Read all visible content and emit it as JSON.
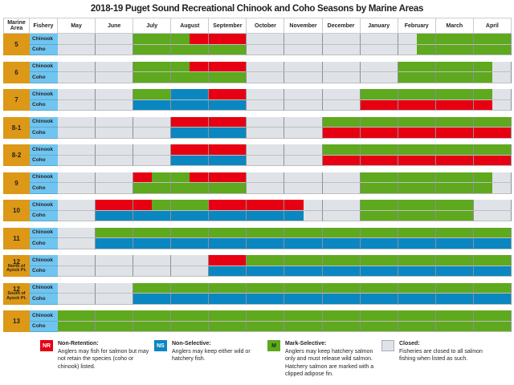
{
  "title": "2018-19 Puget Sound Recreational Chinook and Coho Seasons by Marine Areas",
  "chart_data": {
    "type": "table",
    "headers": {
      "area": "Marine Area",
      "fishery": "Fishery"
    },
    "months": [
      "May",
      "June",
      "July",
      "August",
      "September",
      "October",
      "November",
      "December",
      "January",
      "February",
      "March",
      "April"
    ],
    "resolution": "half-month codes per month: C=Closed, M=Mark-Selective, N=Non-Retention, S=Non-Selective",
    "areas": [
      {
        "area": "5",
        "sub": "",
        "rows": [
          {
            "fishery": "Chinook",
            "codes": "CCCCMMMNNNCCCCCCCCCMMMMM"
          },
          {
            "fishery": "Coho",
            "codes": "CCCCMMMMMMCCCCCCCCCMMMMM"
          }
        ]
      },
      {
        "area": "6",
        "sub": "",
        "rows": [
          {
            "fishery": "Chinook",
            "codes": "CCCCMMMNNNCCCCCCCCMMMMMC"
          },
          {
            "fishery": "Coho",
            "codes": "CCCCMMMMMMCCCCCCCCMMMMMC"
          }
        ]
      },
      {
        "area": "7",
        "sub": "",
        "rows": [
          {
            "fishery": "Chinook",
            "codes": "CCCCMMSSNNCCCCCCMMMMMMMC"
          },
          {
            "fishery": "Coho",
            "codes": "CCCCSSSSSSCCCCCCNNNNNNNC"
          }
        ]
      },
      {
        "area": "8-1",
        "sub": "",
        "rows": [
          {
            "fishery": "Chinook",
            "codes": "CCCCCCNNNNCCCCMMMMMMMMMM"
          },
          {
            "fishery": "Coho",
            "codes": "CCCCCCSSSSCCCCNNNNNNNNNN"
          }
        ]
      },
      {
        "area": "8-2",
        "sub": "",
        "rows": [
          {
            "fishery": "Chinook",
            "codes": "CCCCCCNNNNCCCCMMMMMMMMMM"
          },
          {
            "fishery": "Coho",
            "codes": "CCCCCCSSSSCCCCNNNNNNNNNN"
          }
        ]
      },
      {
        "area": "9",
        "sub": "",
        "rows": [
          {
            "fishery": "Chinook",
            "codes": "CCCCNMMNNNCCCCCCMMMMMMMC"
          },
          {
            "fishery": "Coho",
            "codes": "CCCCMMMMMMCCCCCCMMMMMMMC"
          }
        ]
      },
      {
        "area": "10",
        "sub": "",
        "rows": [
          {
            "fishery": "Chinook",
            "codes": "CCNNNMMMNNNNNCCCMMMMMMCC"
          },
          {
            "fishery": "Coho",
            "codes": "CCSSSSSSSSSSSCCCMMMMMMCC"
          }
        ]
      },
      {
        "area": "11",
        "sub": "",
        "rows": [
          {
            "fishery": "Chinook",
            "codes": "CCMMMMMMMMMMMMMMMMMMMMMM"
          },
          {
            "fishery": "Coho",
            "codes": "CCSSSSSSSSSSSSSSSSSSSSSS"
          }
        ]
      },
      {
        "area": "12",
        "sub": "North of Ayock Pt.",
        "rows": [
          {
            "fishery": "Chinook",
            "codes": "CCCCCCCCNNMMMMMMMMMMMMMM"
          },
          {
            "fishery": "Coho",
            "codes": "CCCCCCCCSSSSSSSSSSSSSSSS"
          }
        ]
      },
      {
        "area": "12",
        "sub": "South of Ayock Pt.",
        "rows": [
          {
            "fishery": "Chinook",
            "codes": "CCCCMMMMMMMMMMMMMMMMMMMM"
          },
          {
            "fishery": "Coho",
            "codes": "CCCCSSSSSSSSSSSSSSSSSSSS"
          }
        ]
      },
      {
        "area": "13",
        "sub": "",
        "rows": [
          {
            "fishery": "Chinook",
            "codes": "MMMMMMMMMMMMMMMMMMMMMMMM"
          },
          {
            "fishery": "Coho",
            "codes": "MMMMMMMMMMMMMMMMMMMMMMMM"
          }
        ]
      }
    ],
    "colors": {
      "C": "#dfe3e8",
      "M": "#5ea91d",
      "N": "#e60012",
      "S": "#0a87c0",
      "area": "#dc9816",
      "fishery": "#70c5f0"
    }
  },
  "legend": [
    {
      "code": "N",
      "badge": "NR",
      "title": "Non-Retention:",
      "text": "Anglers may fish for salmon but may not retain the species (coho or chinook) listed."
    },
    {
      "code": "S",
      "badge": "NS",
      "title": "Non-Selective:",
      "text": "Anglers may keep either wild or hatchery fish."
    },
    {
      "code": "M",
      "badge": "M",
      "title": "Mark-Selective:",
      "text": "Anglers may keep hatchery salmon only and must release wild salmon. Hatchery salmon are marked with a clipped adipose fin."
    },
    {
      "code": "C",
      "badge": "",
      "title": "Closed:",
      "text": "Fisheries are closed to all salmon fishing when listed as such."
    }
  ]
}
